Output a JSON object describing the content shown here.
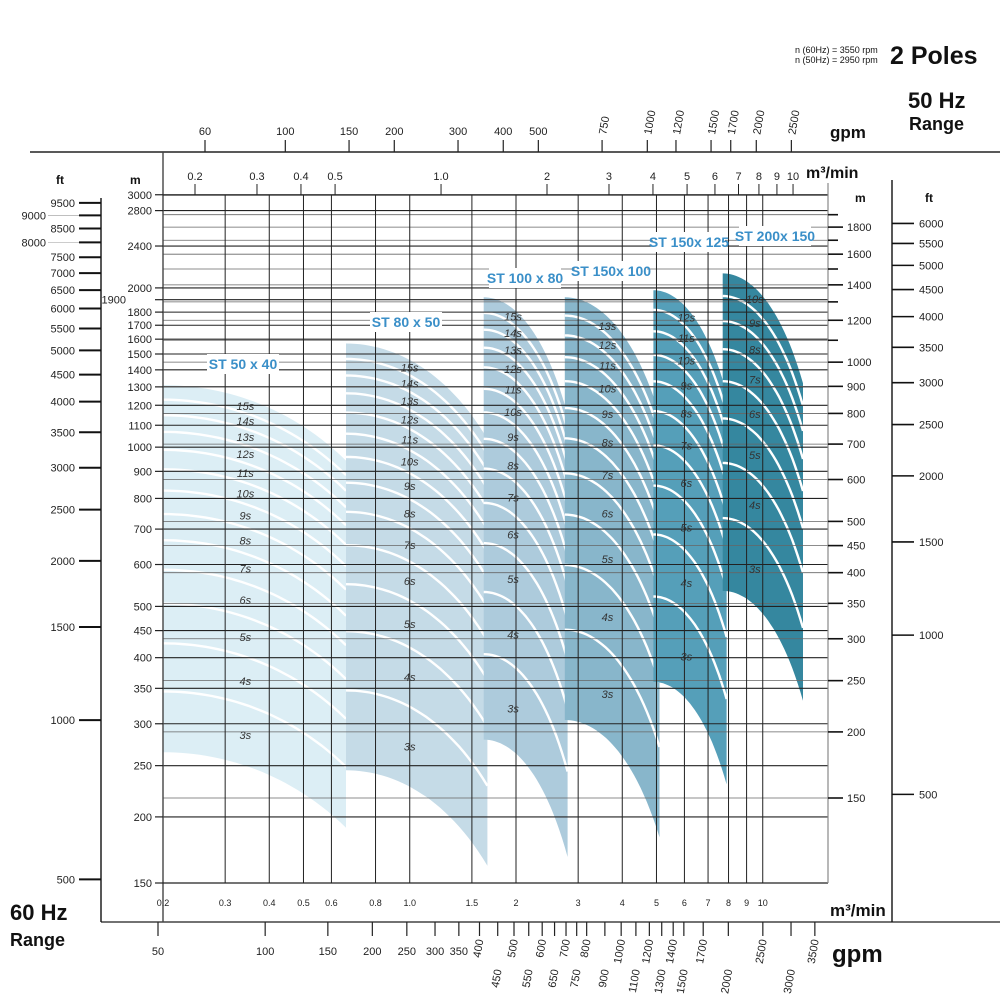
{
  "header": {
    "rpm_60": "n (60Hz) = 3550 rpm",
    "rpm_50": "n (50Hz) = 2950 rpm",
    "poles": "2 Poles",
    "range_50_hz": "50 Hz",
    "range_50_label": "Range",
    "range_60_hz": "60 Hz",
    "range_60_label": "Range"
  },
  "chart_data": {
    "type": "area",
    "scale": "log-log",
    "grid": true,
    "axes": {
      "top_gpm": {
        "label": "gpm",
        "ticks": [
          "60",
          "100",
          "150",
          "200",
          "300",
          "400",
          "500",
          "750",
          "1000",
          "1200",
          "1500",
          "1700",
          "2000",
          "2500"
        ]
      },
      "top_m3min": {
        "label": "m³/min",
        "ticks": [
          "0.2",
          "0.3",
          "0.4",
          "0.5",
          "1.0",
          "2",
          "3",
          "4",
          "5",
          "6",
          "7",
          "8",
          "9",
          "10"
        ]
      },
      "bottom_m3min": {
        "label": "m³/min",
        "ticks": [
          "0.2",
          "0.3",
          "0.4",
          "0.5",
          "0.6",
          "0.8",
          "1.0",
          "1.5",
          "2",
          "3",
          "4",
          "5",
          "6",
          "7",
          "8",
          "9",
          "10"
        ]
      },
      "bottom_gpm": {
        "label": "gpm",
        "ticks": [
          "50",
          "100",
          "150",
          "200",
          "250",
          "300",
          "350",
          "400",
          "450",
          "500",
          "550",
          "600",
          "650",
          "700",
          "750",
          "800",
          "900",
          "1000",
          "1100",
          "1200",
          "1300",
          "1400",
          "1500",
          "1700",
          "2000",
          "2500",
          "3000",
          "3500"
        ]
      },
      "left_ft": {
        "label": "ft",
        "ticks": [
          "500",
          "1000",
          "1500",
          "2000",
          "2500",
          "3000",
          "3500",
          "4000",
          "4500",
          "5000",
          "5500",
          "6000",
          "6500",
          "7000",
          "7500",
          "8000",
          "8500",
          "9000",
          "9500"
        ]
      },
      "left_m": {
        "label": "m",
        "ticks": [
          "150",
          "200",
          "250",
          "300",
          "350",
          "400",
          "450",
          "500",
          "600",
          "700",
          "800",
          "900",
          "1000",
          "1100",
          "1200",
          "1300",
          "1400",
          "1500",
          "1600",
          "1700",
          "1800",
          "1900",
          "2000",
          "2400",
          "2800",
          "3000"
        ]
      },
      "right_m": {
        "label": "m",
        "ticks": [
          "150",
          "200",
          "250",
          "300",
          "350",
          "400",
          "450",
          "500",
          "600",
          "700",
          "800",
          "900",
          "1000",
          "1200",
          "1400",
          "1600",
          "1800"
        ],
        "minor_ticks": [
          1100,
          1300,
          1500,
          1700,
          1900
        ]
      },
      "right_ft": {
        "label": "ft",
        "ticks": [
          "500",
          "1000",
          "1500",
          "2000",
          "2500",
          "3000",
          "3500",
          "4000",
          "4500",
          "5000",
          "5500",
          "6000"
        ]
      }
    },
    "series": [
      {
        "name": "ST 50 x 40",
        "flow_m3min": [
          0.2,
          0.66
        ],
        "stages": [
          3,
          15
        ],
        "head_m_at_min_flow": [
          265,
          1310
        ],
        "head_ratio_at_max_flow": 0.72,
        "color": "#dceef5"
      },
      {
        "name": "ST 80 x 50",
        "flow_m3min": [
          0.66,
          1.66
        ],
        "stages": [
          3,
          15
        ],
        "head_m_at_min_flow": [
          245,
          1570
        ],
        "head_ratio_at_max_flow": 0.66,
        "color": "#c5dbe7"
      },
      {
        "name": "ST 100 x 80",
        "flow_m3min": [
          1.62,
          2.8
        ],
        "stages": [
          3,
          15
        ],
        "head_m_at_min_flow": [
          280,
          1920
        ],
        "head_ratio_at_max_flow": 0.6,
        "color": "#adcbdc"
      },
      {
        "name": "ST 150x 100",
        "flow_m3min": [
          2.75,
          5.1
        ],
        "stages": [
          3,
          13
        ],
        "head_m_at_min_flow": [
          305,
          1920
        ],
        "head_ratio_at_max_flow": 0.6,
        "color": "#88b6cb"
      },
      {
        "name": "ST 150x 125",
        "flow_m3min": [
          4.9,
          7.9
        ],
        "stages": [
          3,
          12
        ],
        "head_m_at_min_flow": [
          360,
          1980
        ],
        "head_ratio_at_max_flow": 0.64,
        "color": "#559fb9"
      },
      {
        "name": "ST 200x 150",
        "flow_m3min": [
          7.7,
          13
        ],
        "stages": [
          3,
          10
        ],
        "head_m_at_min_flow": [
          535,
          2130
        ],
        "head_ratio_at_max_flow": 0.62,
        "color": "#35879f"
      }
    ]
  }
}
